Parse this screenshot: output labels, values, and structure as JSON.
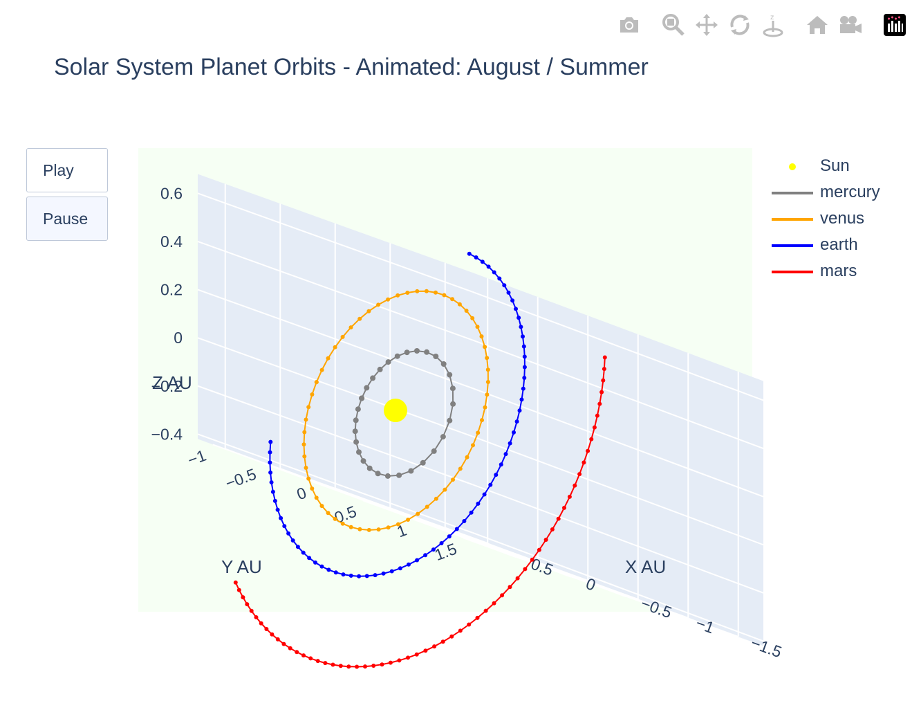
{
  "title": "Solar System Planet Orbits - Animated: August / Summer",
  "controls": {
    "play_label": "Play",
    "pause_label": "Pause"
  },
  "modebar": {
    "icons": [
      "camera-icon",
      "zoom-icon",
      "pan-icon",
      "orbit-rotation-icon",
      "turntable-rotation-icon",
      "home-icon",
      "camera-view-icon",
      "plotly-logo-icon"
    ]
  },
  "colors": {
    "Sun": "#ffff00",
    "mercury": "#808080",
    "venus": "#ffa500",
    "earth": "#0000ff",
    "mars": "#ff0000",
    "scene_bg": "#f6fff4",
    "wall": "#e5ecf6"
  },
  "chart_data": {
    "type": "scatter3d",
    "title": "Solar System Planet Orbits - Animated: August / Summer",
    "axes": {
      "x": {
        "label": "X AU",
        "ticks": [
          "−1.5",
          "−1",
          "−0.5",
          "0",
          "0.5"
        ],
        "tick_values": [
          -1.5,
          -1,
          -0.5,
          0,
          0.5
        ]
      },
      "y": {
        "label": "Y AU",
        "ticks": [
          "−1",
          "−0.5",
          "0",
          "0.5",
          "1",
          "1.5"
        ],
        "tick_values": [
          -1,
          -0.5,
          0,
          0.5,
          1,
          1.5
        ]
      },
      "z": {
        "label": "Z AU",
        "ticks": [
          "−0.4",
          "−0.2",
          "0",
          "0.2",
          "0.4",
          "0.6"
        ],
        "tick_values": [
          -0.4,
          -0.2,
          0,
          0.2,
          0.4,
          0.6
        ]
      }
    },
    "grid": true,
    "legend_placement": "top-right",
    "series": [
      {
        "name": "Sun",
        "mode": "markers",
        "points": [
          [
            0,
            0,
            0
          ]
        ]
      },
      {
        "name": "mercury",
        "mode": "lines+markers",
        "orbit": {
          "a": 0.387,
          "e": 0.2056,
          "tilt_about_x_deg": 50,
          "theta_start_deg": 0,
          "theta_end_deg": 360,
          "points": 30
        }
      },
      {
        "name": "venus",
        "mode": "lines+markers",
        "orbit": {
          "a": 0.723,
          "e": 0.0068,
          "tilt_about_x_deg": 50,
          "theta_start_deg": 0,
          "theta_end_deg": 360,
          "points": 60
        }
      },
      {
        "name": "earth",
        "mode": "lines+markers",
        "orbit": {
          "a": 1.0,
          "e": 0.0167,
          "tilt_about_x_deg": 50,
          "theta_start_deg": 95,
          "theta_end_deg": 335,
          "points": 65
        }
      },
      {
        "name": "mars",
        "mode": "lines+markers",
        "orbit": {
          "a": 1.524,
          "e": 0.0934,
          "tilt_about_x_deg": 50,
          "theta_start_deg": 155,
          "theta_end_deg": 300,
          "points": 60
        }
      }
    ]
  }
}
